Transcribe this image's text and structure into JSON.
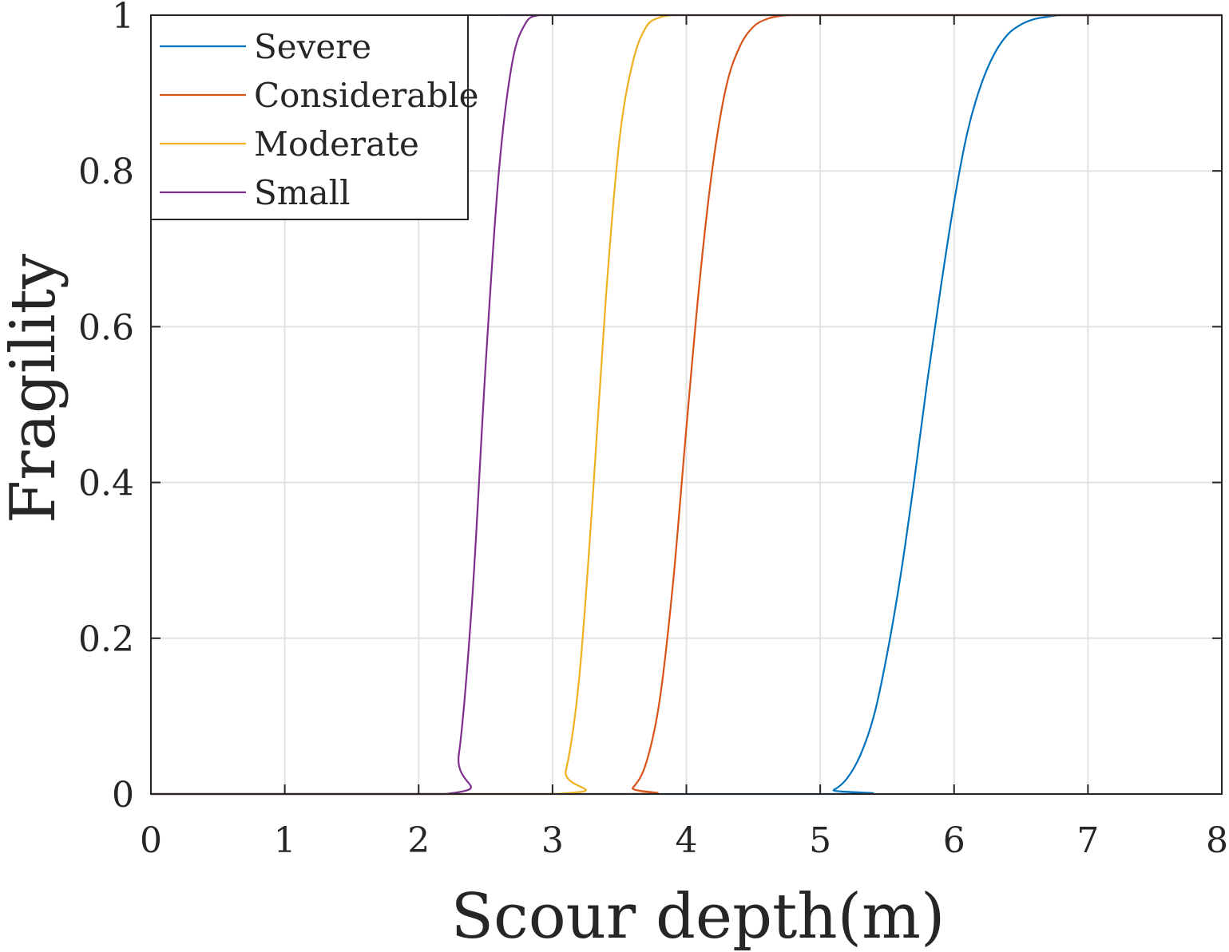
{
  "chart_data": {
    "type": "line",
    "title": "",
    "xlabel": "Scour depth(m)",
    "ylabel": "Fragility",
    "xlim": [
      0,
      8
    ],
    "ylim": [
      0,
      1
    ],
    "xticks": [
      0,
      1,
      2,
      3,
      4,
      5,
      6,
      7,
      8
    ],
    "xtick_labels": [
      "0",
      "1",
      "2",
      "3",
      "4",
      "5",
      "6",
      "7",
      "8"
    ],
    "yticks": [
      0,
      0.2,
      0.4,
      0.6,
      0.8,
      1
    ],
    "ytick_labels": [
      "0",
      "0.2",
      "0.4",
      "0.6",
      "0.8",
      "1"
    ],
    "grid": true,
    "legend_position": "top-left",
    "series": [
      {
        "name": "Severe",
        "color": "#0072BD",
        "x": [
          5.0,
          5.1,
          5.2,
          5.3,
          5.4,
          5.5,
          5.6,
          5.7,
          5.8,
          5.9,
          6.0,
          6.1,
          6.2,
          6.3,
          6.4,
          6.5,
          6.6,
          6.7,
          6.8,
          7.0
        ],
        "y": [
          0.0,
          0.005,
          0.02,
          0.05,
          0.1,
          0.18,
          0.28,
          0.4,
          0.53,
          0.65,
          0.76,
          0.85,
          0.91,
          0.95,
          0.975,
          0.988,
          0.995,
          0.998,
          1.0,
          1.0
        ]
      },
      {
        "name": "Considerable",
        "color": "#D95319",
        "x": [
          3.5,
          3.6,
          3.7,
          3.8,
          3.9,
          4.0,
          4.1,
          4.2,
          4.3,
          4.4,
          4.5,
          4.6,
          4.7,
          4.8,
          5.0
        ],
        "y": [
          0.0,
          0.008,
          0.04,
          0.12,
          0.27,
          0.47,
          0.66,
          0.81,
          0.91,
          0.96,
          0.985,
          0.995,
          0.999,
          1.0,
          1.0
        ]
      },
      {
        "name": "Moderate",
        "color": "#EDB120",
        "x": [
          3.0,
          3.1,
          3.2,
          3.3,
          3.4,
          3.5,
          3.6,
          3.7,
          3.8,
          3.9,
          4.0
        ],
        "y": [
          0.0,
          0.03,
          0.15,
          0.38,
          0.64,
          0.84,
          0.94,
          0.985,
          0.997,
          1.0,
          1.0
        ]
      },
      {
        "name": "Small",
        "color": "#7E2F8E",
        "x": [
          2.2,
          2.3,
          2.4,
          2.5,
          2.6,
          2.7,
          2.8,
          2.9,
          3.0
        ],
        "y": [
          0.0,
          0.05,
          0.25,
          0.55,
          0.8,
          0.94,
          0.99,
          1.0,
          1.0
        ]
      }
    ]
  }
}
